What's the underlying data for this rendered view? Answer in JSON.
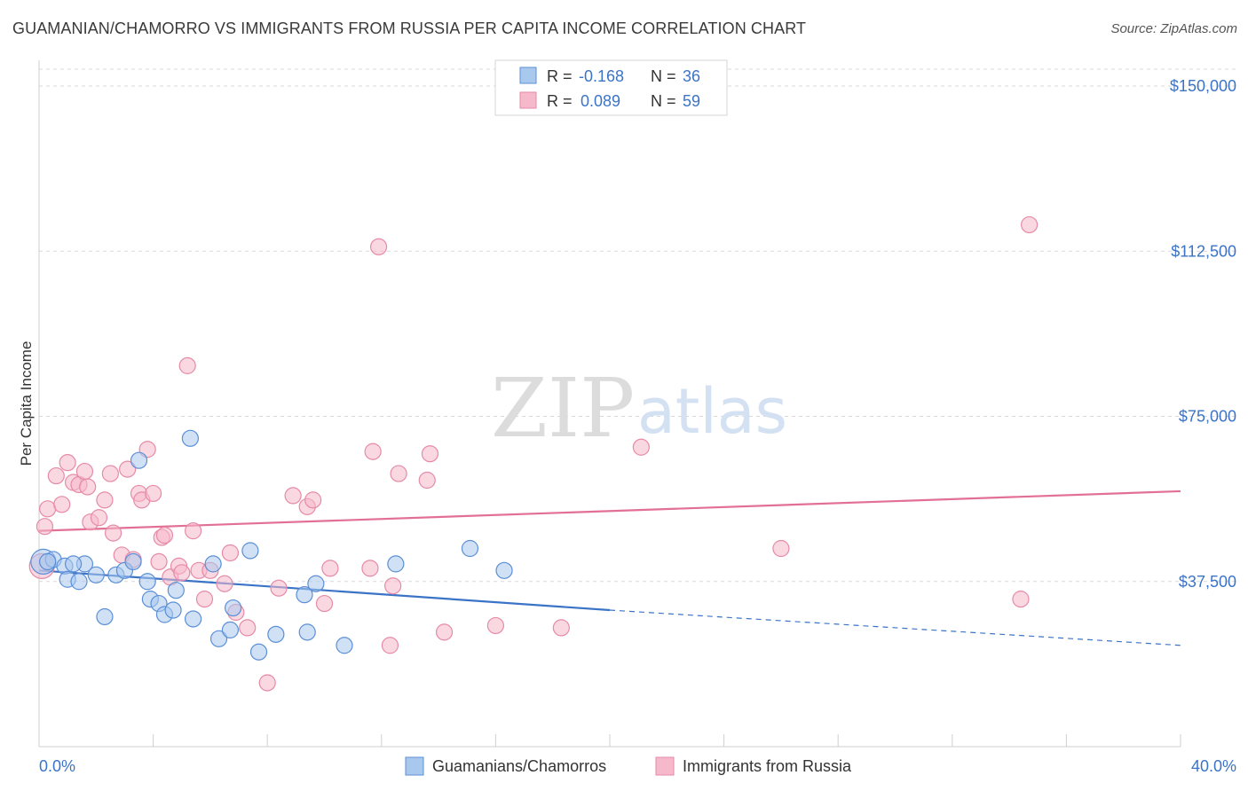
{
  "header": {
    "title": "GUAMANIAN/CHAMORRO VS IMMIGRANTS FROM RUSSIA PER CAPITA INCOME CORRELATION CHART",
    "source": "Source: ZipAtlas.com"
  },
  "watermark": {
    "zip": "ZIP",
    "atlas": "atlas"
  },
  "colors": {
    "blue_fill": "#a9c8ee",
    "blue_stroke": "#5b8fd6",
    "blue_line": "#3b74c7",
    "pink_fill": "#f6b8cb",
    "pink_stroke": "#e68aa7",
    "pink_line": "#e26f95",
    "grid": "#d9d9d9",
    "tick_label": "#3b74c7"
  },
  "legend_top": {
    "rows": [
      {
        "r_label": "R =",
        "r_value": "-0.168",
        "n_label": "N =",
        "n_value": "36"
      },
      {
        "r_label": "R =",
        "r_value": "0.089",
        "n_label": "N =",
        "n_value": "59"
      }
    ]
  },
  "chart_data": {
    "type": "scatter",
    "title": "GUAMANIAN/CHAMORRO VS IMMIGRANTS FROM RUSSIA PER CAPITA INCOME CORRELATION CHART",
    "ylabel": "Per Capita Income",
    "xlim": [
      0,
      40
    ],
    "ylim": [
      0,
      150000
    ],
    "x_tick_labels": [
      "0.0%",
      "40.0%"
    ],
    "y_ticks": [
      37500,
      75000,
      112500,
      150000
    ],
    "y_tick_labels": [
      "$37,500",
      "$75,000",
      "$112,500",
      "$150,000"
    ],
    "grid": true,
    "series": [
      {
        "name": "Guamanians/Chamorros",
        "color": "blue",
        "trend": {
          "x": [
            0,
            20
          ],
          "y": [
            40000,
            31000
          ],
          "dashed_to": [
            40,
            23000
          ]
        },
        "points": [
          [
            0.15,
            42000
          ],
          [
            0.5,
            42500
          ],
          [
            0.9,
            41000
          ],
          [
            1.0,
            38000
          ],
          [
            1.4,
            37500
          ],
          [
            1.6,
            41500
          ],
          [
            2.0,
            39000
          ],
          [
            2.3,
            29500
          ],
          [
            2.7,
            39000
          ],
          [
            3.0,
            40000
          ],
          [
            3.3,
            42000
          ],
          [
            3.5,
            65000
          ],
          [
            3.8,
            37500
          ],
          [
            3.9,
            33500
          ],
          [
            4.2,
            32500
          ],
          [
            4.4,
            30000
          ],
          [
            4.7,
            31000
          ],
          [
            4.8,
            35500
          ],
          [
            5.3,
            70000
          ],
          [
            5.4,
            29000
          ],
          [
            6.1,
            41500
          ],
          [
            6.3,
            24500
          ],
          [
            6.7,
            26500
          ],
          [
            6.8,
            31500
          ],
          [
            7.4,
            44500
          ],
          [
            7.7,
            21500
          ],
          [
            8.3,
            25500
          ],
          [
            9.3,
            34500
          ],
          [
            9.4,
            26000
          ],
          [
            9.7,
            37000
          ],
          [
            10.7,
            23000
          ],
          [
            12.5,
            41500
          ],
          [
            15.1,
            45000
          ],
          [
            16.3,
            40000
          ],
          [
            0.3,
            42000
          ],
          [
            1.2,
            41500
          ]
        ]
      },
      {
        "name": "Immigrants from Russia",
        "color": "pink",
        "trend": {
          "x": [
            0,
            40
          ],
          "y": [
            49000,
            58000
          ]
        },
        "points": [
          [
            0.1,
            41000
          ],
          [
            0.2,
            50000
          ],
          [
            0.3,
            54000
          ],
          [
            0.6,
            61500
          ],
          [
            0.8,
            55000
          ],
          [
            1.0,
            64500
          ],
          [
            1.2,
            60000
          ],
          [
            1.4,
            59500
          ],
          [
            1.6,
            62500
          ],
          [
            1.7,
            59000
          ],
          [
            1.8,
            51000
          ],
          [
            2.1,
            52000
          ],
          [
            2.3,
            56000
          ],
          [
            2.5,
            62000
          ],
          [
            2.6,
            48500
          ],
          [
            2.9,
            43500
          ],
          [
            3.1,
            63000
          ],
          [
            3.3,
            42500
          ],
          [
            3.5,
            57500
          ],
          [
            3.6,
            56000
          ],
          [
            3.8,
            67500
          ],
          [
            4.0,
            57500
          ],
          [
            4.2,
            42000
          ],
          [
            4.3,
            47500
          ],
          [
            4.4,
            48000
          ],
          [
            4.6,
            38500
          ],
          [
            4.9,
            41000
          ],
          [
            5.0,
            39500
          ],
          [
            5.2,
            86500
          ],
          [
            5.4,
            49000
          ],
          [
            5.6,
            40000
          ],
          [
            5.8,
            33500
          ],
          [
            6.0,
            40000
          ],
          [
            6.5,
            37000
          ],
          [
            6.7,
            44000
          ],
          [
            6.9,
            30500
          ],
          [
            7.3,
            27000
          ],
          [
            8.0,
            14500
          ],
          [
            8.4,
            36000
          ],
          [
            8.9,
            57000
          ],
          [
            9.4,
            54500
          ],
          [
            9.6,
            56000
          ],
          [
            10.0,
            32500
          ],
          [
            10.2,
            40500
          ],
          [
            11.6,
            40500
          ],
          [
            11.7,
            67000
          ],
          [
            11.9,
            113500
          ],
          [
            12.3,
            23000
          ],
          [
            12.4,
            36500
          ],
          [
            12.6,
            62000
          ],
          [
            13.6,
            60500
          ],
          [
            13.7,
            66500
          ],
          [
            14.2,
            26000
          ],
          [
            16.0,
            27500
          ],
          [
            18.3,
            27000
          ],
          [
            21.1,
            68000
          ],
          [
            26.0,
            45000
          ],
          [
            34.4,
            33500
          ],
          [
            34.7,
            118500
          ]
        ]
      }
    ]
  },
  "legend_bottom": {
    "items": [
      {
        "label": "Guamanians/Chamorros"
      },
      {
        "label": "Immigrants from Russia"
      }
    ]
  }
}
